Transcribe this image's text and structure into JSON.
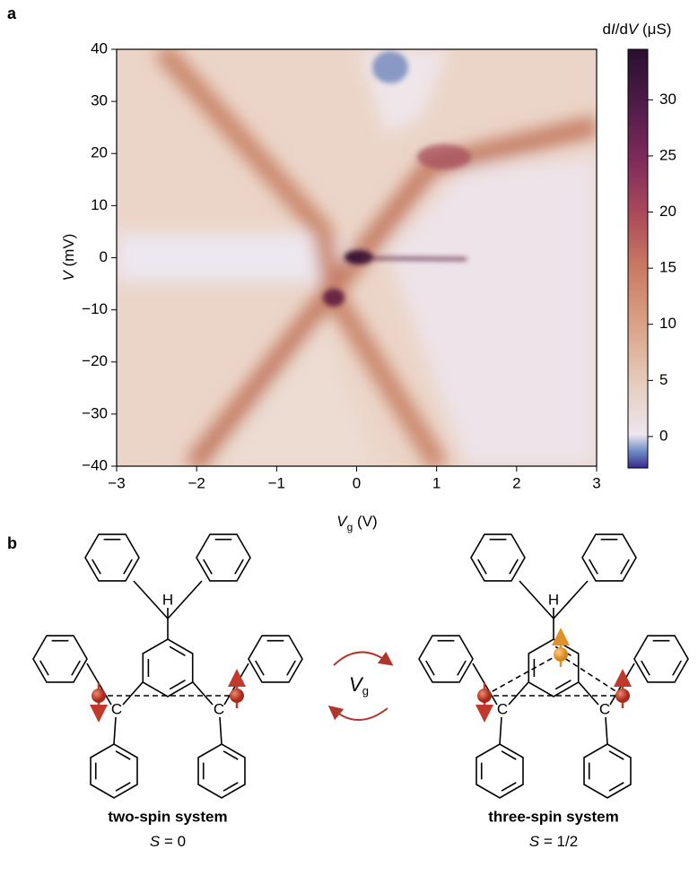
{
  "panel_labels": [
    "a",
    "b"
  ],
  "chart_data": {
    "type": "heatmap",
    "xlabel": [
      "V",
      "g",
      " (V)"
    ],
    "ylabel": [
      "V",
      " (mV)"
    ],
    "xlim": [
      -3,
      3
    ],
    "xticks": [
      {
        "value": -3,
        "label": "−3"
      },
      {
        "value": -2,
        "label": "−2"
      },
      {
        "value": -1,
        "label": "−1"
      },
      0,
      1,
      2,
      3
    ],
    "ylim": [
      -40,
      40
    ],
    "yticks": [
      {
        "value": -40,
        "label": "−40"
      },
      {
        "value": -30,
        "label": "−30"
      },
      {
        "value": -20,
        "label": "−20"
      },
      {
        "value": -10,
        "label": "−10"
      },
      0,
      10,
      20,
      30,
      40
    ],
    "colorbar": {
      "label": [
        "d",
        "I",
        "/d",
        "V",
        " (μS)"
      ],
      "lim": [
        -2.8,
        34.5
      ],
      "ticks": [
        0,
        5,
        10,
        15,
        20,
        25,
        30
      ]
    }
  },
  "diagram": {
    "atom_h": "H",
    "atom_c": "C",
    "gate": [
      "V",
      "g"
    ],
    "left": {
      "caption": "two-spin system",
      "spin": [
        "S",
        " = 0"
      ]
    },
    "right": {
      "caption": "three-spin system",
      "spin": [
        "S",
        " = 1/2"
      ]
    }
  }
}
